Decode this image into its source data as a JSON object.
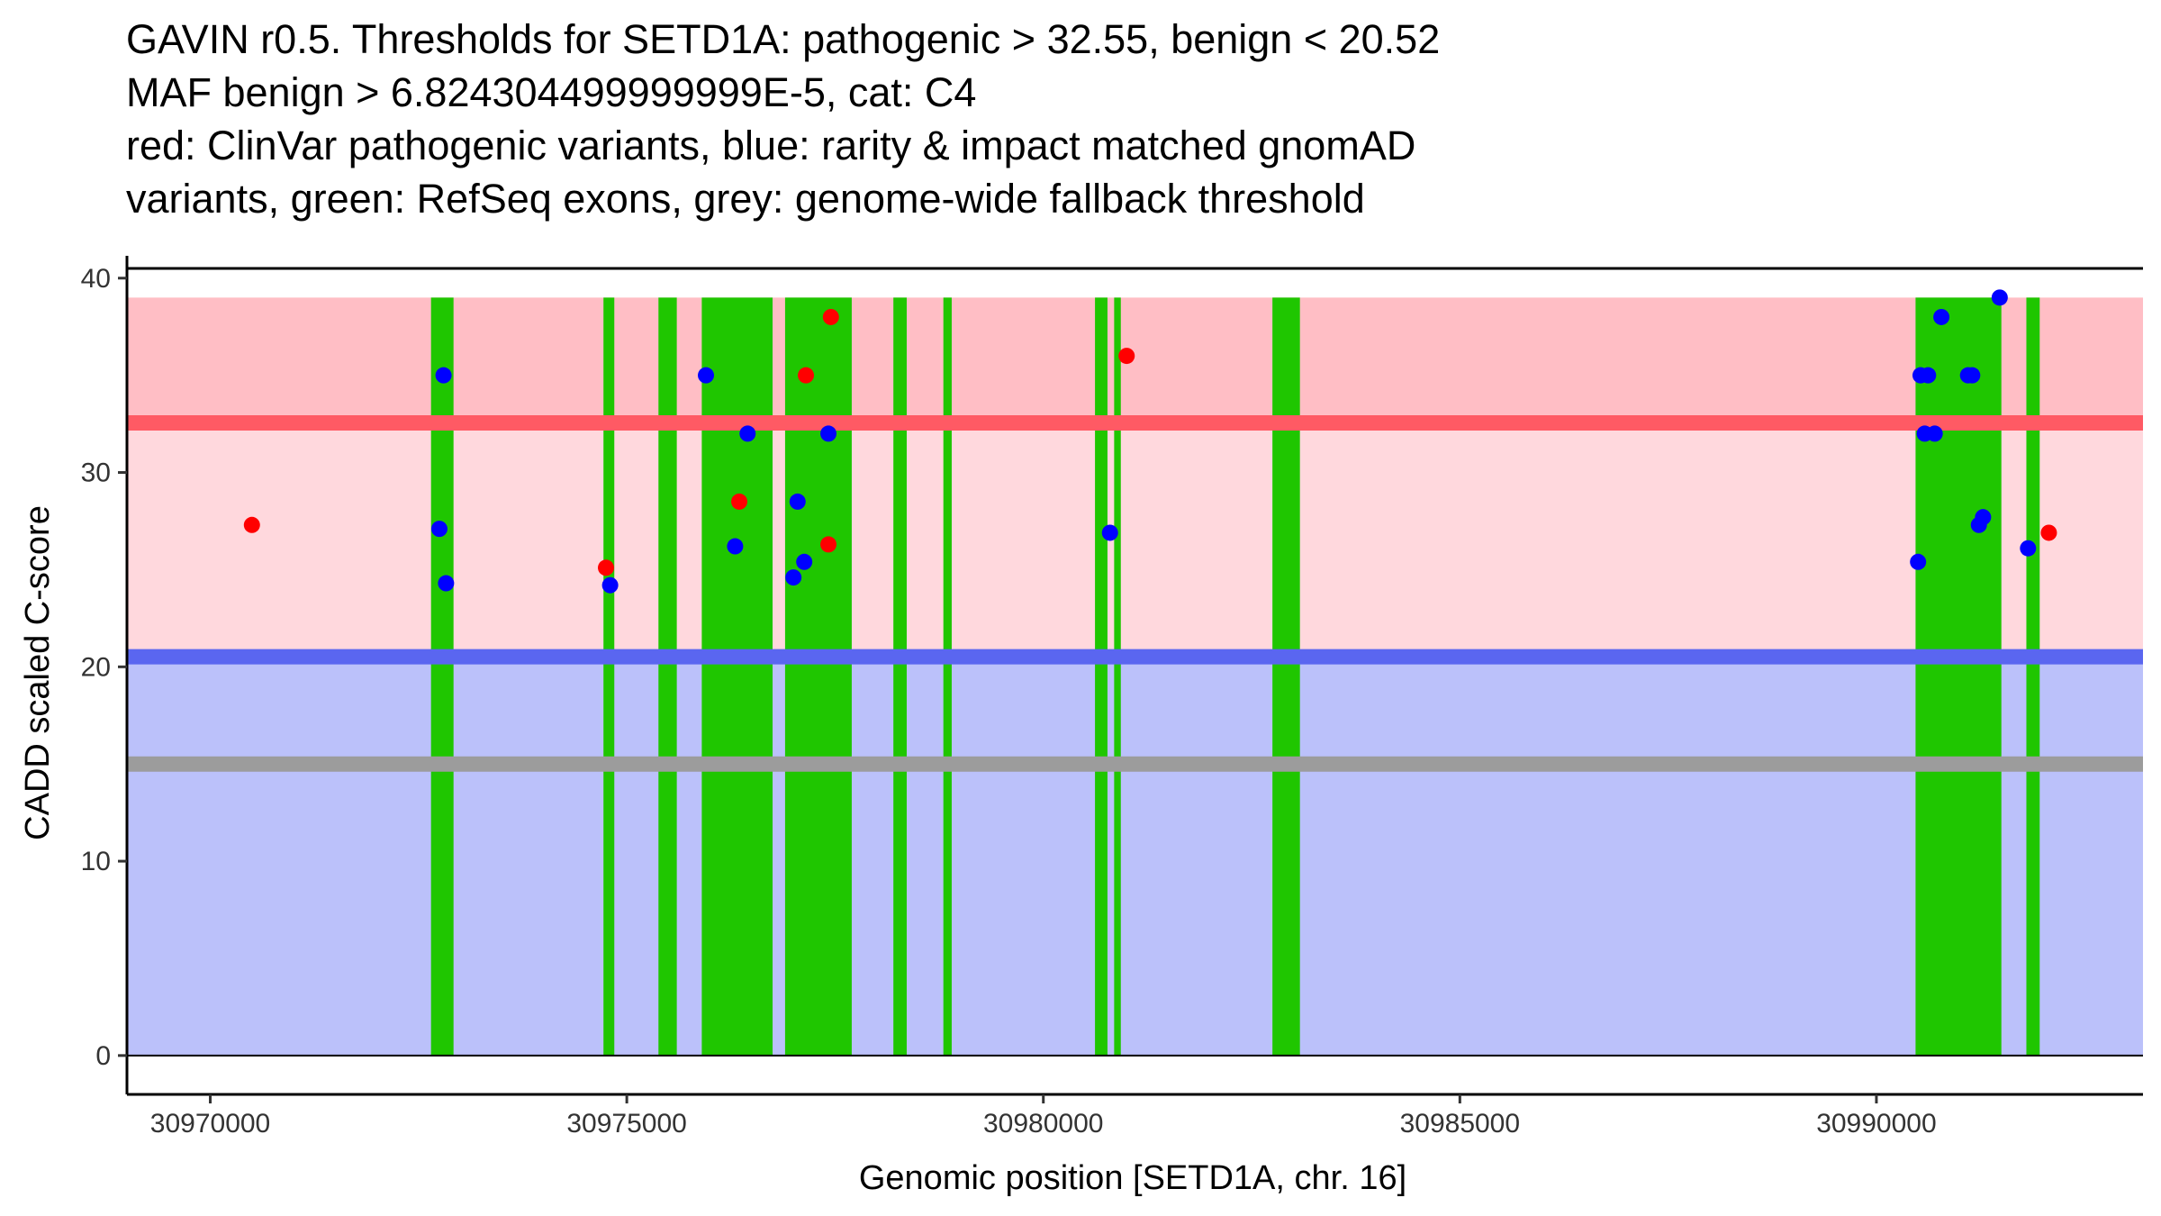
{
  "chart_data": {
    "type": "scatter",
    "title_lines": [
      "GAVIN r0.5. Thresholds for SETD1A: pathogenic > 32.55, benign < 20.52",
      "MAF benign > 6.824304499999999E-5, cat: C4",
      "red: ClinVar pathogenic variants, blue: rarity & impact matched gnomAD",
      "variants, green: RefSeq exons, grey: genome-wide fallback threshold"
    ],
    "xlabel": "Genomic position [SETD1A, chr. 16]",
    "ylabel": "CADD scaled C-score",
    "xlim": [
      30969000,
      30993200
    ],
    "ylim": [
      -2,
      40.5
    ],
    "x_ticks": [
      {
        "value": 30970000,
        "label": "30970000"
      },
      {
        "value": 30975000,
        "label": "30975000"
      },
      {
        "value": 30980000,
        "label": "30980000"
      },
      {
        "value": 30985000,
        "label": "30985000"
      },
      {
        "value": 30990000,
        "label": "30990000"
      }
    ],
    "y_ticks": [
      {
        "value": 0,
        "label": "0"
      },
      {
        "value": 10,
        "label": "10"
      },
      {
        "value": 20,
        "label": "20"
      },
      {
        "value": 30,
        "label": "30"
      },
      {
        "value": 40,
        "label": "40"
      }
    ],
    "thresholds": {
      "pathogenic": 32.55,
      "benign": 20.52,
      "genome_wide_fallback": 15,
      "score_max": 39
    },
    "colors": {
      "pathogenic_region": "#ffd8dd",
      "pathogenic_upper_region": "#ffbec5",
      "benign_region": "#bbc1fa",
      "pathogenic_line": "#ff5a64",
      "benign_line": "#5a66f0",
      "fallback_line": "#9c9c9c",
      "exon": "#1fc600",
      "clinvar_point": "#ff0000",
      "gnomad_point": "#0000ff"
    },
    "exons": [
      [
        30972650,
        30972920
      ],
      [
        30974720,
        30974850
      ],
      [
        30975380,
        30975600
      ],
      [
        30975900,
        30976750
      ],
      [
        30976900,
        30977700
      ],
      [
        30978200,
        30978360
      ],
      [
        30978800,
        30978900
      ],
      [
        30980620,
        30980770
      ],
      [
        30980850,
        30980930
      ],
      [
        30982750,
        30983080
      ],
      [
        30990470,
        30991500
      ],
      [
        30991800,
        30991960
      ]
    ],
    "series": [
      {
        "name": "ClinVar pathogenic variants",
        "color": "#ff0000",
        "points": [
          [
            30970500,
            27.3
          ],
          [
            30974750,
            25.1
          ],
          [
            30976350,
            28.5
          ],
          [
            30977150,
            35.0
          ],
          [
            30977450,
            38.0
          ],
          [
            30977420,
            26.3
          ],
          [
            30981000,
            36.0
          ],
          [
            30992070,
            26.9
          ]
        ]
      },
      {
        "name": "rarity & impact matched gnomAD variants",
        "color": "#0000ff",
        "points": [
          [
            30972750,
            27.1
          ],
          [
            30972800,
            35.0
          ],
          [
            30972830,
            24.3
          ],
          [
            30974800,
            24.2
          ],
          [
            30975950,
            35.0
          ],
          [
            30976300,
            26.2
          ],
          [
            30976450,
            32.0
          ],
          [
            30977000,
            24.6
          ],
          [
            30977050,
            28.5
          ],
          [
            30977130,
            25.4
          ],
          [
            30977420,
            32.0
          ],
          [
            30980800,
            26.9
          ],
          [
            30990500,
            25.4
          ],
          [
            30990530,
            35.0
          ],
          [
            30990580,
            32.0
          ],
          [
            30990620,
            35.0
          ],
          [
            30990700,
            32.0
          ],
          [
            30990780,
            38.0
          ],
          [
            30991100,
            35.0
          ],
          [
            30991150,
            35.0
          ],
          [
            30991230,
            27.3
          ],
          [
            30991280,
            27.7
          ],
          [
            30991480,
            39.0
          ],
          [
            30991820,
            26.1
          ]
        ]
      }
    ]
  }
}
